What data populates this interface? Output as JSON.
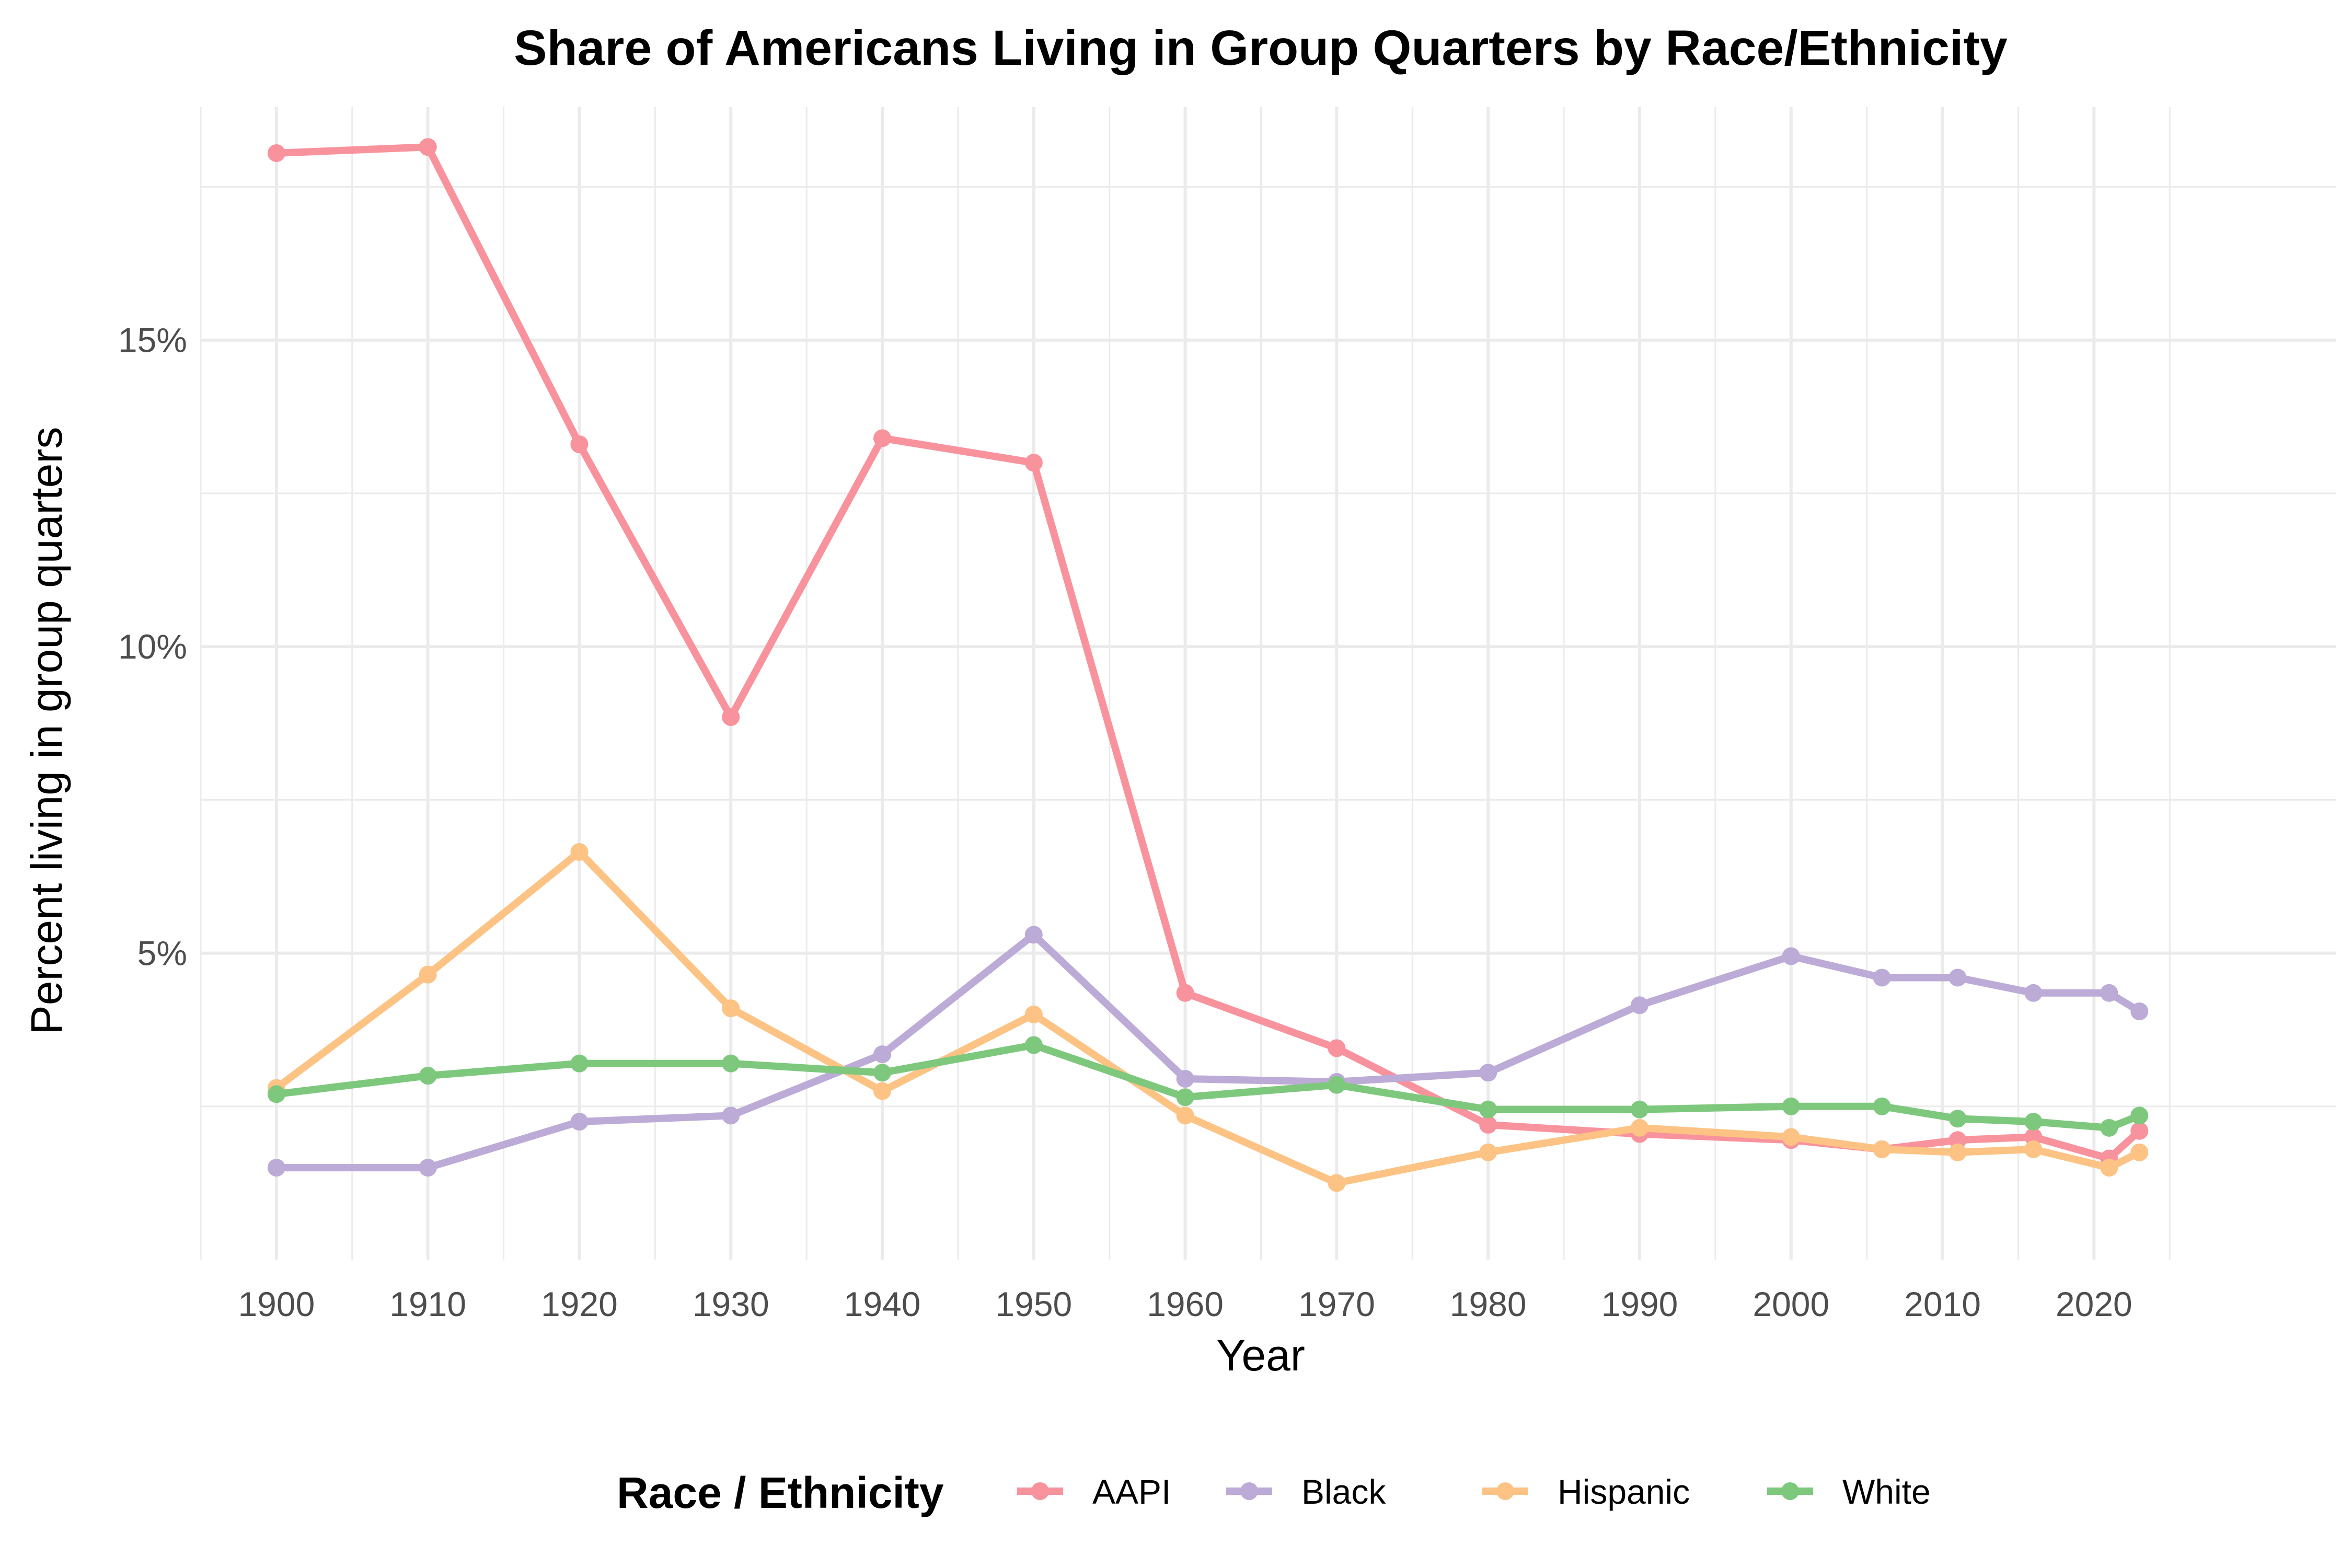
{
  "chart_data": {
    "type": "line",
    "title": "Share of Americans Living in Group Quarters by Race/Ethnicity",
    "xlabel": "Year",
    "ylabel": "Percent living in group quarters",
    "x_ticks": [
      1900,
      1910,
      1920,
      1930,
      1940,
      1950,
      1960,
      1970,
      1980,
      1990,
      2000,
      2010,
      2020
    ],
    "y_ticks": [
      5,
      10,
      15
    ],
    "y_tick_labels": [
      "5%",
      "10%",
      "15%"
    ],
    "xlim": [
      1895,
      2036
    ],
    "ylim": [
      0,
      18.8
    ],
    "grid": true,
    "legend": {
      "title": "Race / Ethnicity",
      "position": "bottom"
    },
    "x": [
      1900,
      1910,
      1920,
      1930,
      1940,
      1950,
      1960,
      1970,
      1980,
      1990,
      2000,
      2006,
      2011,
      2016,
      2021,
      2023
    ],
    "series": [
      {
        "name": "AAPI",
        "color": "#F8929C",
        "values": [
          18.05,
          18.15,
          13.3,
          8.85,
          13.4,
          13.0,
          4.35,
          3.45,
          2.2,
          2.05,
          1.95,
          1.8,
          1.95,
          2.0,
          1.65,
          2.1
        ]
      },
      {
        "name": "Black",
        "color": "#BBABD6",
        "values": [
          1.5,
          1.5,
          2.25,
          2.35,
          3.35,
          5.3,
          2.95,
          2.9,
          3.05,
          4.15,
          4.95,
          4.6,
          4.6,
          4.35,
          4.35,
          4.05
        ]
      },
      {
        "name": "Hispanic",
        "color": "#FCC384",
        "values": [
          2.8,
          4.65,
          6.65,
          4.1,
          2.75,
          4.0,
          2.35,
          1.25,
          1.75,
          2.15,
          2.0,
          1.8,
          1.75,
          1.8,
          1.5,
          1.75
        ]
      },
      {
        "name": "White",
        "color": "#7EC87E",
        "values": [
          2.7,
          3.0,
          3.2,
          3.2,
          3.05,
          3.5,
          2.65,
          2.85,
          2.45,
          2.45,
          2.5,
          2.5,
          2.3,
          2.25,
          2.15,
          2.35
        ]
      }
    ]
  }
}
